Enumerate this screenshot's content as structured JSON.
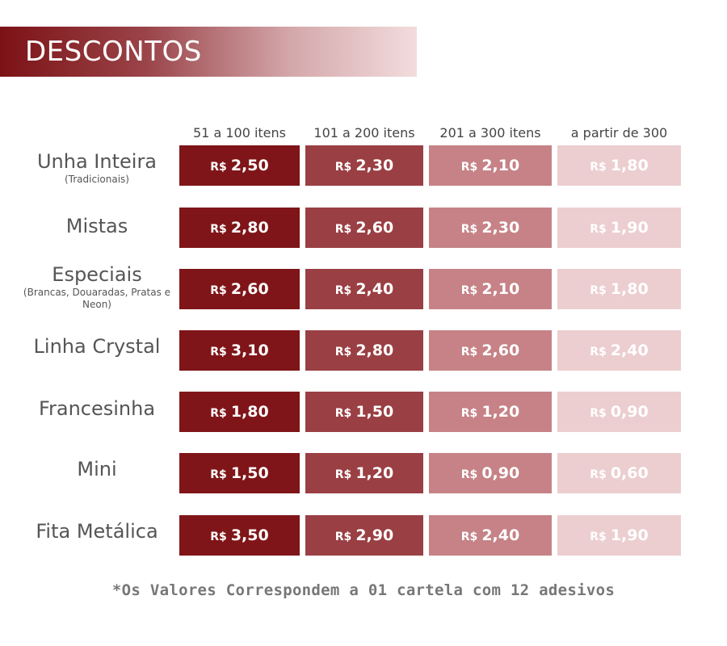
{
  "banner": {
    "title": "DESCONTOS"
  },
  "columns": [
    "51 a 100 itens",
    "101 a 200 itens",
    "201 a 300 itens",
    "a partir de 300"
  ],
  "currency": "R$",
  "rows": [
    {
      "label": "Unha Inteira",
      "sub": "(Tradicionais)",
      "prices": [
        "2,50",
        "2,30",
        "2,10",
        "1,80"
      ]
    },
    {
      "label": "Mistas",
      "sub": "",
      "prices": [
        "2,80",
        "2,60",
        "2,30",
        "1,90"
      ]
    },
    {
      "label": "Especiais",
      "sub": "(Brancas, Douaradas, Pratas e Neon)",
      "prices": [
        "2,60",
        "2,40",
        "2,10",
        "1,80"
      ]
    },
    {
      "label": "Linha Crystal",
      "sub": "",
      "prices": [
        "3,10",
        "2,80",
        "2,60",
        "2,40"
      ]
    },
    {
      "label": "Francesinha",
      "sub": "",
      "prices": [
        "1,80",
        "1,50",
        "1,20",
        "0,90"
      ]
    },
    {
      "label": "Mini",
      "sub": "",
      "prices": [
        "1,50",
        "1,20",
        "0,90",
        "0,60"
      ]
    },
    {
      "label": "Fita Metálica",
      "sub": "",
      "prices": [
        "3,50",
        "2,90",
        "2,40",
        "1,90"
      ]
    }
  ],
  "footnote": "*Os Valores Correspondem a 01 cartela com 12 adesivos",
  "colors": {
    "tier1": "#7f1518",
    "tier2": "#9a3f43",
    "tier3": "#c68286",
    "tier4": "#ecced0"
  }
}
